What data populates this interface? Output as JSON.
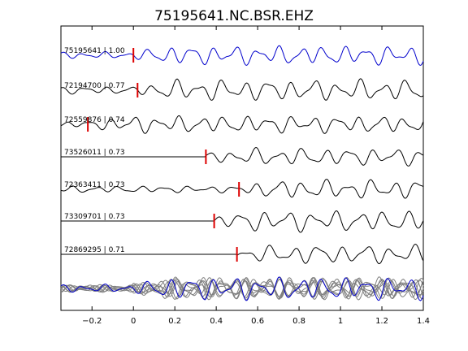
{
  "chart_data": {
    "type": "line",
    "title": "75195641.NC.BSR.EHZ",
    "xlabel": "",
    "ylabel": "",
    "xlim": [
      -0.35,
      1.4
    ],
    "xticks": [
      -0.2,
      0,
      0.2,
      0.4,
      0.6,
      0.8,
      1,
      1.2,
      1.4
    ],
    "xtick_labels": [
      "−0.2",
      "0",
      "0.2",
      "0.4",
      "0.6",
      "0.8",
      "1",
      "1.2",
      "1.4"
    ],
    "grid": false,
    "colors": {
      "reference": "#0000cc",
      "trace": "#000000",
      "pick": "#dd0000",
      "stack": "#7f7f7f"
    },
    "traces": [
      {
        "label": "75195641 | 1.00",
        "pick": 0.0,
        "onset": -0.35,
        "amp": 10,
        "freq": 9.5,
        "seed": 1,
        "reference": true
      },
      {
        "label": "72194700 | 0.77",
        "pick": 0.02,
        "onset": -0.35,
        "amp": 11,
        "freq": 9.0,
        "seed": 2
      },
      {
        "label": "72559876 | 0.74",
        "pick": -0.22,
        "onset": -0.35,
        "amp": 9,
        "freq": 9.2,
        "seed": 3
      },
      {
        "label": "73526011 | 0.73",
        "pick": 0.35,
        "onset": 0.35,
        "amp": 9,
        "freq": 8.8,
        "seed": 4
      },
      {
        "label": "72363411 | 0.73",
        "pick": 0.51,
        "onset": -0.35,
        "amp": 10,
        "freq": 9.0,
        "seed": 5
      },
      {
        "label": "73309701 | 0.73",
        "pick": 0.39,
        "onset": 0.39,
        "amp": 11,
        "freq": 8.7,
        "seed": 6
      },
      {
        "label": "72869295 | 0.71",
        "pick": 0.5,
        "onset": 0.5,
        "amp": 10,
        "freq": 8.6,
        "seed": 7
      }
    ],
    "stack": {
      "count": 8,
      "note_visible": false
    }
  }
}
